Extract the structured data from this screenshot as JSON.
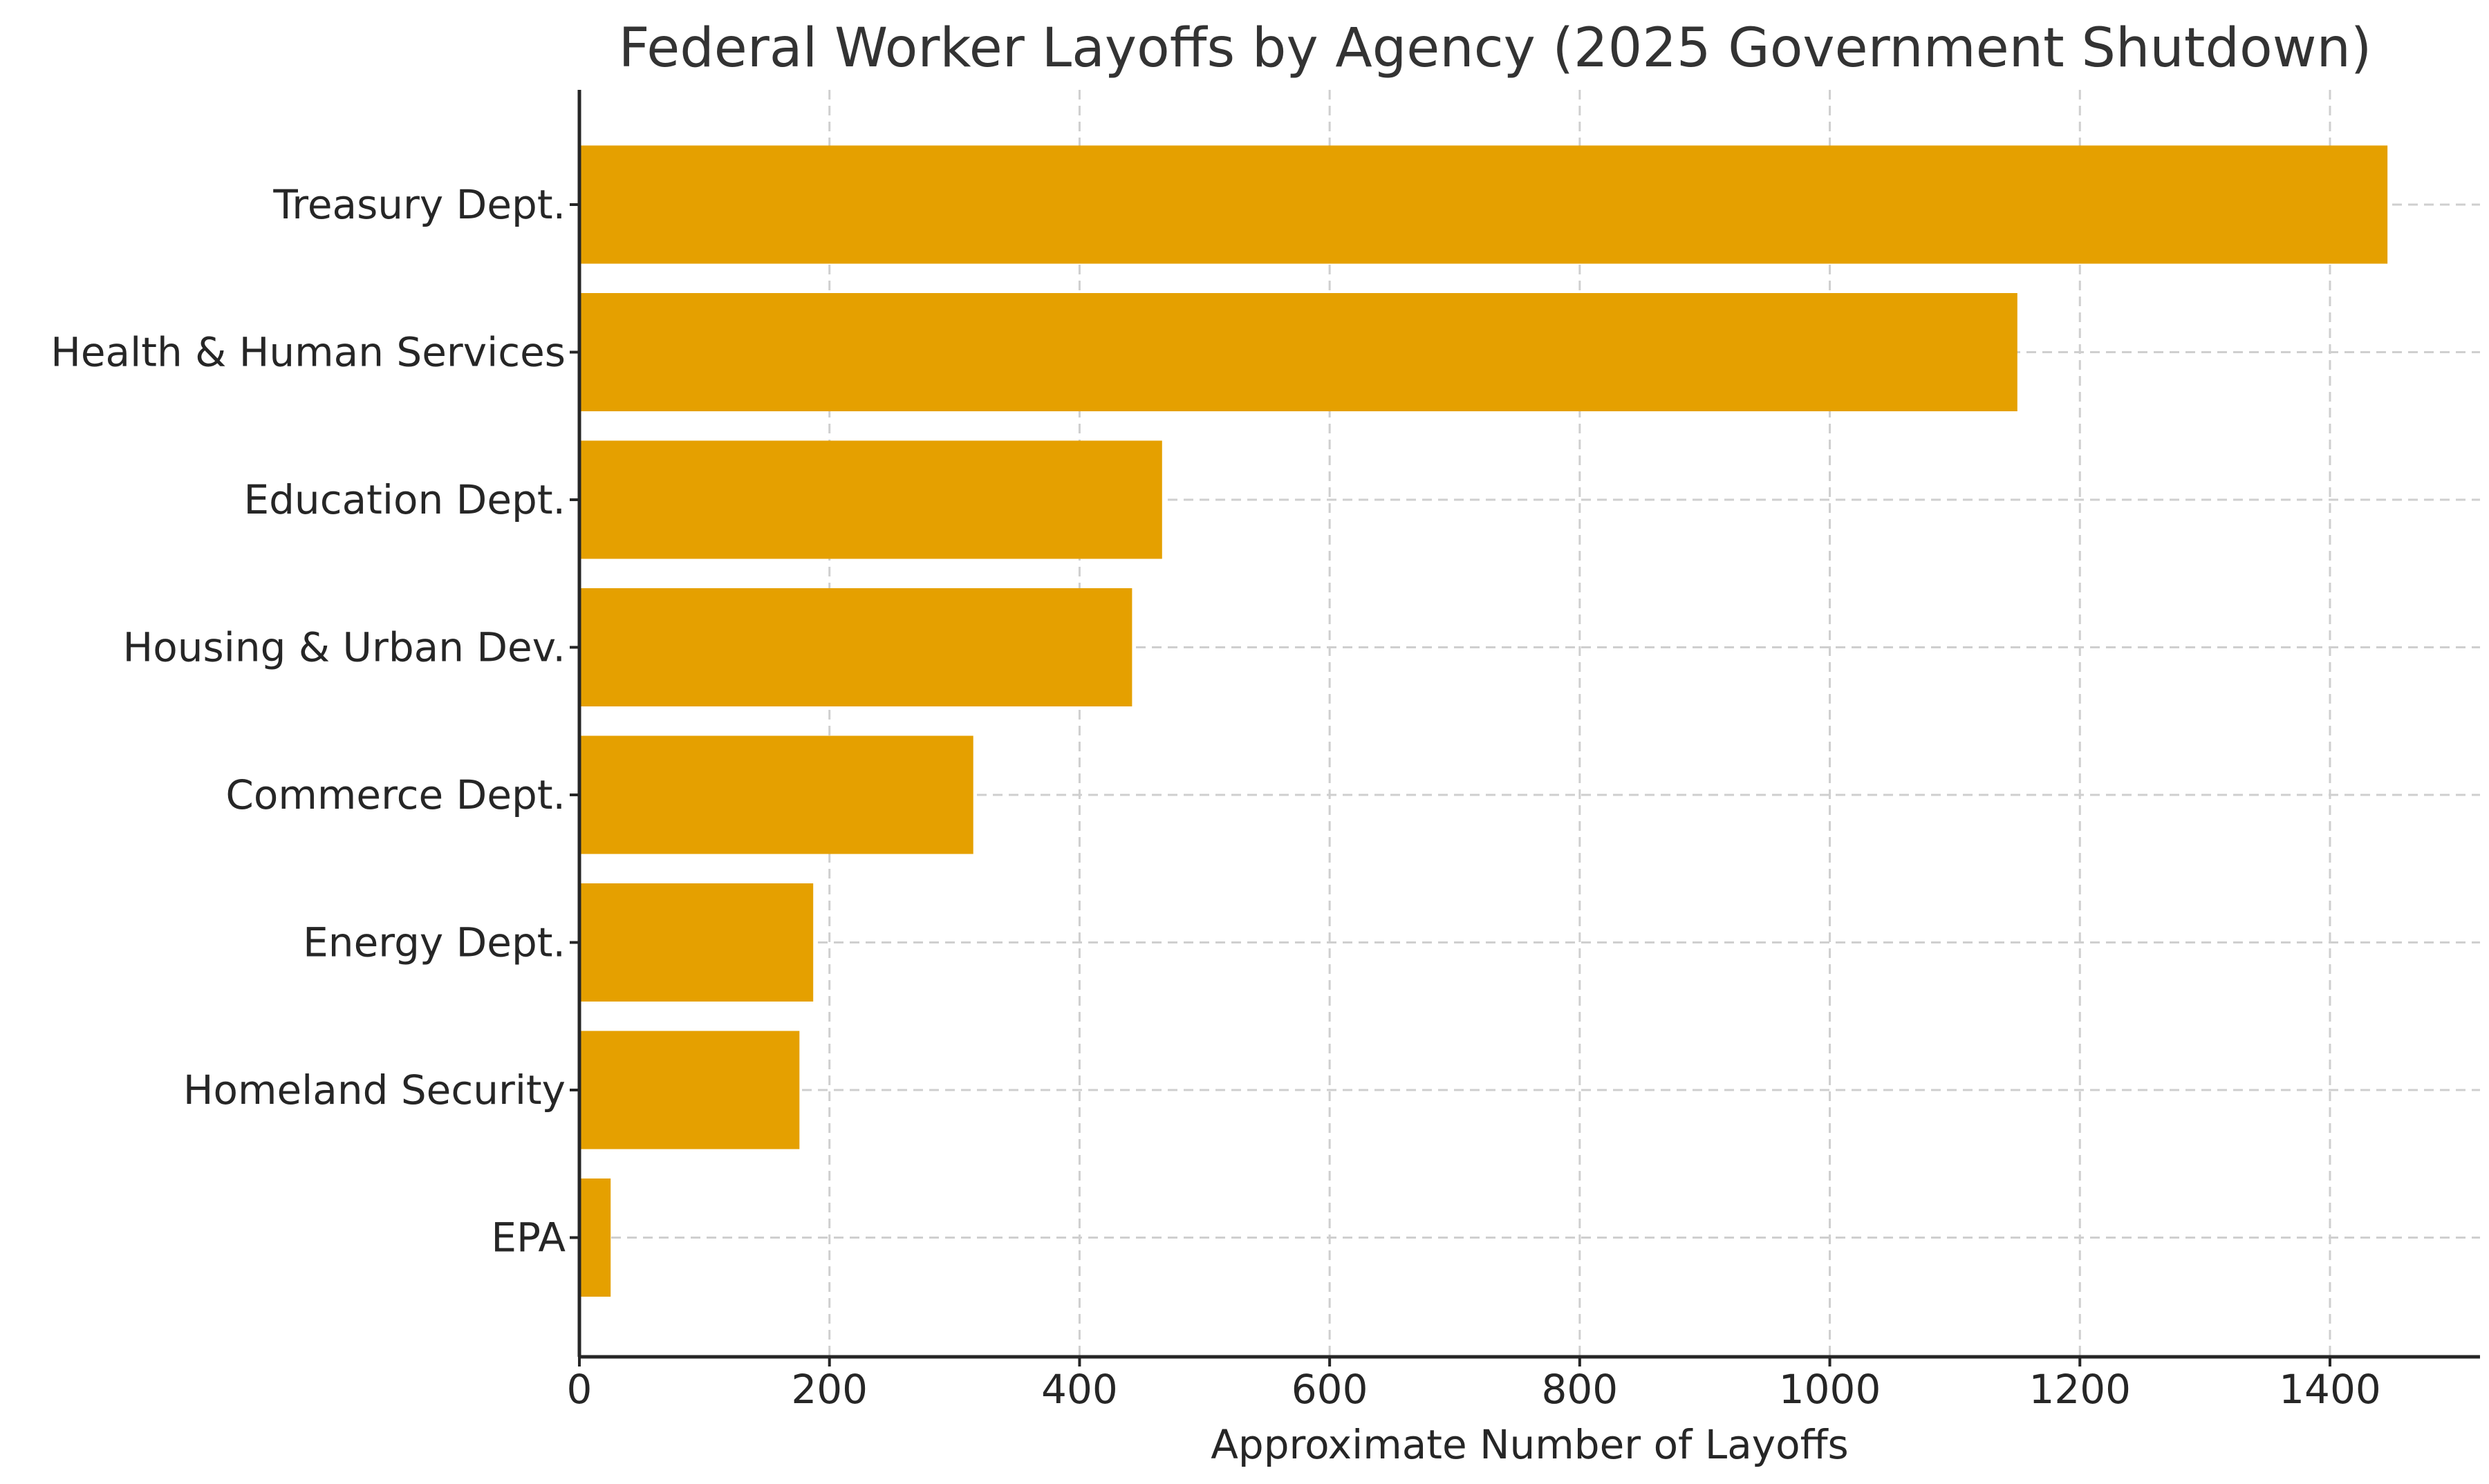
{
  "chart_data": {
    "type": "bar",
    "orientation": "horizontal",
    "title": "Federal Worker Layoffs by Agency (2025 Government Shutdown)",
    "xlabel": "Approximate Number of Layoffs",
    "ylabel": "",
    "categories": [
      "Treasury Dept.",
      "Health & Human Services",
      "Education Dept.",
      "Housing & Urban Dev.",
      "Commerce Dept.",
      "Energy Dept.",
      "Homeland Security",
      "EPA"
    ],
    "values": [
      1446,
      1150,
      466,
      442,
      315,
      187,
      176,
      25
    ],
    "xlim": [
      0,
      1520
    ],
    "xticks": [
      0,
      200,
      400,
      600,
      800,
      1000,
      1200,
      1400
    ],
    "grid": true,
    "legend": false,
    "colors": {
      "bar": "#E5A000",
      "grid": "#cfcfcf",
      "axis": "#262626",
      "title": "#333333"
    }
  }
}
